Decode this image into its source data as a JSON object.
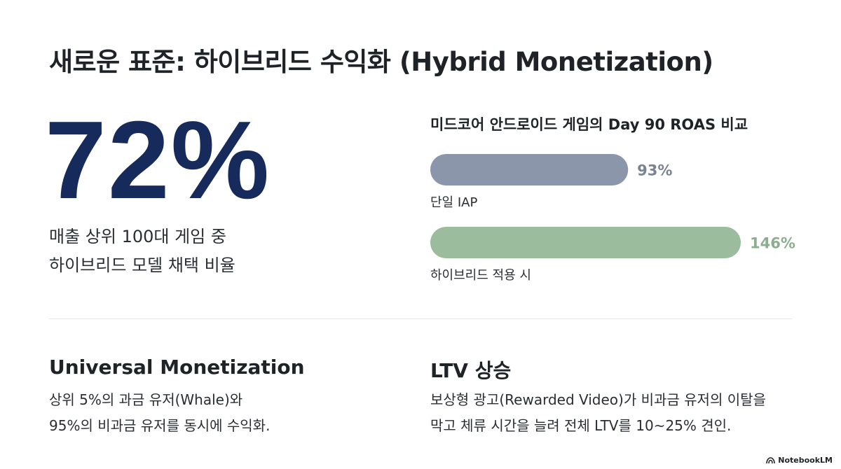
{
  "title": "새로운 표준: 하이브리드 수익화 (Hybrid Monetization)",
  "stat": {
    "value": "72%",
    "desc_line1": "매출 상위 100대 게임 중",
    "desc_line2": "하이브리드 모델 채택 비율"
  },
  "chart_data": {
    "type": "bar",
    "orientation": "horizontal",
    "title": "미드코어 안드로이드 게임의 Day 90 ROAS 비교",
    "categories": [
      "단일 IAP",
      "하이브리드 적용 시"
    ],
    "values": [
      93,
      146
    ],
    "value_labels": [
      "93%",
      "146%"
    ],
    "colors": [
      "#8c96ab",
      "#9bbd9e"
    ],
    "label_colors": [
      "#7a8393",
      "#8aae8e"
    ],
    "xlabel": "",
    "ylabel": "",
    "grid": false
  },
  "cards": [
    {
      "title": "Universal Monetization",
      "line1": "상위 5%의 과금 유저(Whale)와",
      "line2": "95%의 비과금 유저를 동시에 수익화."
    },
    {
      "title": "LTV 상승",
      "line1": "보상형 광고(Rewarded Video)가 비과금 유저의 이탈을",
      "line2": "막고 체류 시간을 늘려 전체 LTV를 10~25% 견인."
    }
  ],
  "brand": {
    "label": "NotebookLM",
    "icon": "notebooklm-logo-icon"
  }
}
